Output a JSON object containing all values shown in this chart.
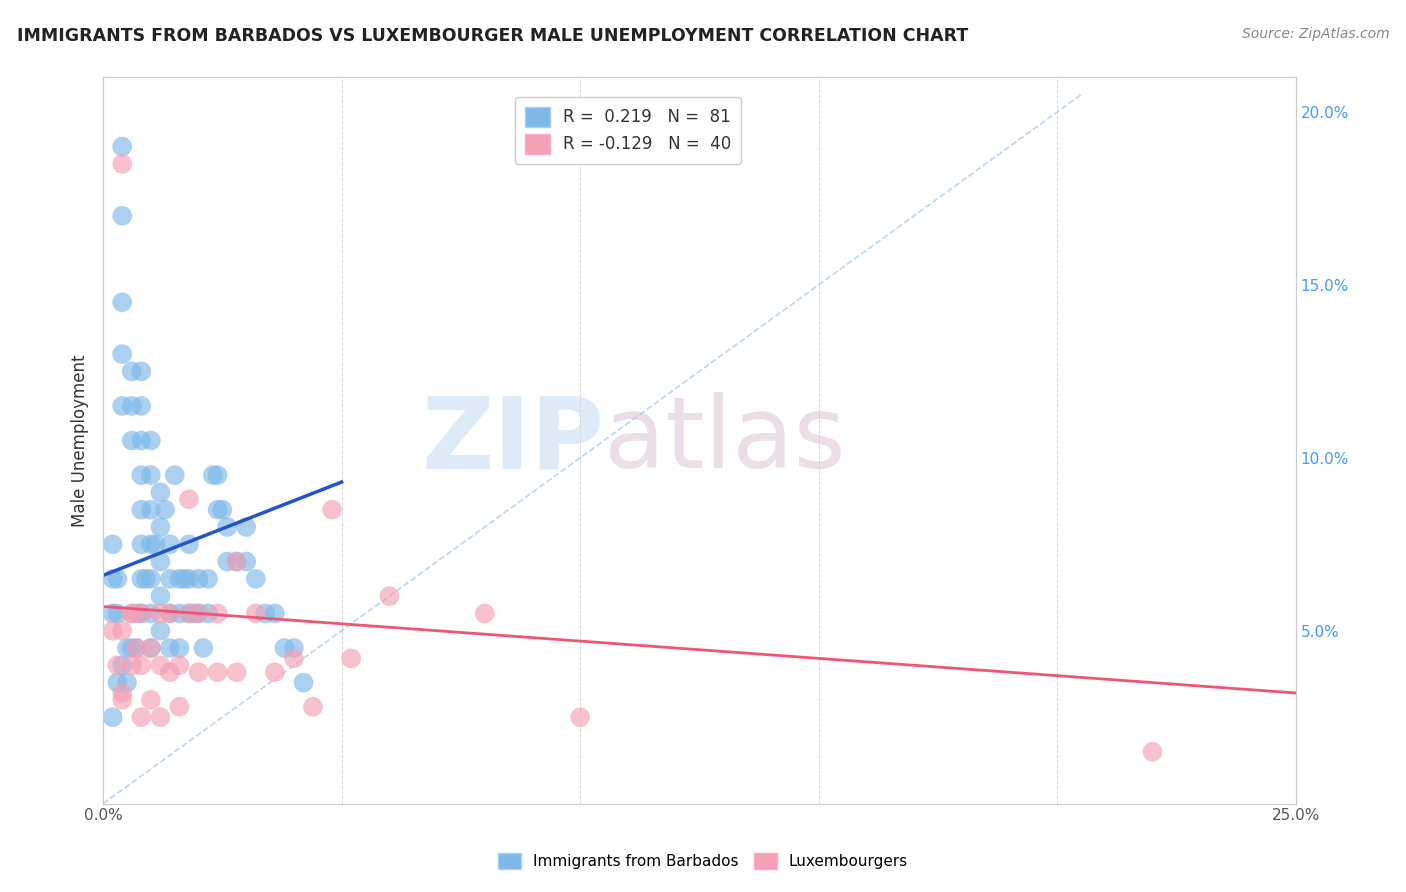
{
  "title": "IMMIGRANTS FROM BARBADOS VS LUXEMBOURGER MALE UNEMPLOYMENT CORRELATION CHART",
  "source": "Source: ZipAtlas.com",
  "ylabel_text": "Male Unemployment",
  "xlim": [
    0.0,
    0.25
  ],
  "ylim": [
    0.0,
    0.21
  ],
  "x_tick_positions": [
    0.0,
    0.05,
    0.1,
    0.15,
    0.2,
    0.25
  ],
  "x_tick_labels": [
    "0.0%",
    "",
    "",
    "",
    "",
    "25.0%"
  ],
  "y_ticks_right": [
    0.05,
    0.1,
    0.15,
    0.2
  ],
  "y_tick_labels_right": [
    "5.0%",
    "10.0%",
    "15.0%",
    "20.0%"
  ],
  "blue_color": "#7EB8E8",
  "pink_color": "#F4A0B5",
  "blue_line_color": "#2255CC",
  "pink_line_color": "#EE5577",
  "diag_line_color": "#AACCEE",
  "watermark_zip_color": "#C8DCF0",
  "watermark_atlas_color": "#E0C8D8",
  "blue_scatter_x": [
    0.004,
    0.004,
    0.004,
    0.004,
    0.004,
    0.004,
    0.006,
    0.006,
    0.006,
    0.006,
    0.008,
    0.008,
    0.008,
    0.008,
    0.008,
    0.008,
    0.008,
    0.008,
    0.01,
    0.01,
    0.01,
    0.01,
    0.01,
    0.01,
    0.01,
    0.012,
    0.012,
    0.012,
    0.012,
    0.012,
    0.014,
    0.014,
    0.014,
    0.014,
    0.016,
    0.016,
    0.016,
    0.018,
    0.018,
    0.018,
    0.02,
    0.02,
    0.022,
    0.022,
    0.024,
    0.024,
    0.026,
    0.026,
    0.028,
    0.03,
    0.03,
    0.034,
    0.038,
    0.042,
    0.002,
    0.002,
    0.002,
    0.002,
    0.003,
    0.003,
    0.003,
    0.005,
    0.005,
    0.007,
    0.007,
    0.009,
    0.011,
    0.013,
    0.015,
    0.017,
    0.019,
    0.021,
    0.023,
    0.025,
    0.032,
    0.036,
    0.04
  ],
  "blue_scatter_y": [
    0.19,
    0.17,
    0.145,
    0.13,
    0.115,
    0.04,
    0.125,
    0.115,
    0.105,
    0.045,
    0.125,
    0.115,
    0.105,
    0.095,
    0.085,
    0.075,
    0.065,
    0.055,
    0.105,
    0.095,
    0.085,
    0.075,
    0.065,
    0.055,
    0.045,
    0.09,
    0.08,
    0.07,
    0.06,
    0.05,
    0.075,
    0.065,
    0.055,
    0.045,
    0.065,
    0.055,
    0.045,
    0.075,
    0.065,
    0.055,
    0.065,
    0.055,
    0.065,
    0.055,
    0.095,
    0.085,
    0.08,
    0.07,
    0.07,
    0.08,
    0.07,
    0.055,
    0.045,
    0.035,
    0.075,
    0.065,
    0.055,
    0.025,
    0.065,
    0.055,
    0.035,
    0.045,
    0.035,
    0.055,
    0.045,
    0.065,
    0.075,
    0.085,
    0.095,
    0.065,
    0.055,
    0.045,
    0.095,
    0.085,
    0.065,
    0.055,
    0.045
  ],
  "pink_scatter_x": [
    0.004,
    0.004,
    0.004,
    0.006,
    0.006,
    0.008,
    0.008,
    0.008,
    0.01,
    0.01,
    0.012,
    0.012,
    0.012,
    0.014,
    0.014,
    0.016,
    0.016,
    0.018,
    0.018,
    0.02,
    0.02,
    0.024,
    0.024,
    0.028,
    0.028,
    0.032,
    0.036,
    0.04,
    0.044,
    0.048,
    0.052,
    0.06,
    0.08,
    0.1,
    0.22,
    0.002,
    0.003,
    0.004,
    0.006,
    0.007
  ],
  "pink_scatter_y": [
    0.185,
    0.05,
    0.03,
    0.055,
    0.04,
    0.055,
    0.04,
    0.025,
    0.045,
    0.03,
    0.055,
    0.04,
    0.025,
    0.055,
    0.038,
    0.04,
    0.028,
    0.088,
    0.055,
    0.055,
    0.038,
    0.055,
    0.038,
    0.07,
    0.038,
    0.055,
    0.038,
    0.042,
    0.028,
    0.085,
    0.042,
    0.06,
    0.055,
    0.025,
    0.015,
    0.05,
    0.04,
    0.032,
    0.055,
    0.045
  ],
  "blue_trend_x": [
    0.0,
    0.05
  ],
  "blue_trend_y": [
    0.066,
    0.093
  ],
  "pink_trend_x": [
    0.0,
    0.25
  ],
  "pink_trend_y": [
    0.057,
    0.032
  ],
  "diag_line_x": [
    0.0,
    0.205
  ],
  "diag_line_y": [
    0.0,
    0.205
  ]
}
